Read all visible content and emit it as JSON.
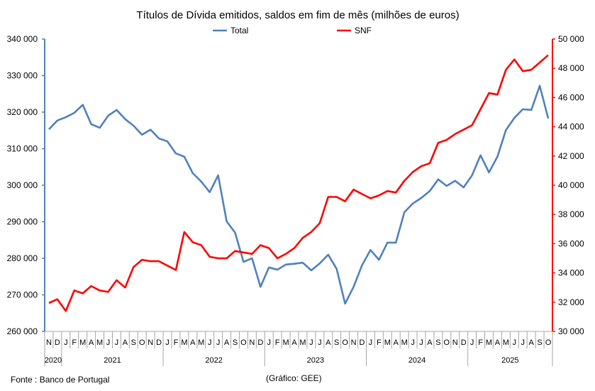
{
  "chart_data": {
    "type": "line",
    "title": "Títulos de Dívida emitidos, saldos em fim de mês  (milhões de euros)",
    "legend_position": "top-center",
    "source": "Fonte : Banco de Portugal",
    "credit": "(Gráfico: GEE)",
    "months": [
      "N",
      "D",
      "J",
      "F",
      "M",
      "A",
      "M",
      "J",
      "J",
      "A",
      "S",
      "O",
      "N",
      "D",
      "J",
      "F",
      "M",
      "A",
      "M",
      "J",
      "J",
      "A",
      "S",
      "O",
      "N",
      "D",
      "J",
      "F",
      "M",
      "A",
      "M",
      "J",
      "J",
      "A",
      "S",
      "O",
      "N",
      "D",
      "J",
      "F",
      "M",
      "A",
      "M",
      "J",
      "J",
      "A",
      "S",
      "O",
      "N",
      "D",
      "J",
      "F",
      "M",
      "A",
      "M",
      "J",
      "J",
      "A",
      "S",
      "O"
    ],
    "years": [
      {
        "label": "2020",
        "start": 0,
        "count": 2
      },
      {
        "label": "2021",
        "start": 2,
        "count": 12
      },
      {
        "label": "2022",
        "start": 14,
        "count": 12
      },
      {
        "label": "2023",
        "start": 26,
        "count": 12
      },
      {
        "label": "2024",
        "start": 38,
        "count": 12
      },
      {
        "label": "2025",
        "start": 50,
        "count": 10
      }
    ],
    "y_left": {
      "min": 260000,
      "max": 340000,
      "step": 10000,
      "ticks": [
        "260 000",
        "270 000",
        "280 000",
        "290 000",
        "300 000",
        "310 000",
        "320 000",
        "330 000",
        "340 000"
      ]
    },
    "y_right": {
      "min": 30000,
      "max": 50000,
      "step": 2000,
      "ticks": [
        "30 000",
        "32 000",
        "34 000",
        "36 000",
        "38 000",
        "40 000",
        "42 000",
        "44 000",
        "46 000",
        "48 000",
        "50 000"
      ]
    },
    "series": [
      {
        "name": "Total",
        "axis": "left",
        "color": "#4f81bd",
        "values": [
          315300,
          317700,
          318600,
          319800,
          322000,
          316700,
          315700,
          319000,
          320600,
          318100,
          316300,
          313800,
          315200,
          312800,
          312000,
          308700,
          307800,
          303300,
          301000,
          298100,
          302700,
          290100,
          287000,
          279000,
          280000,
          272200,
          277500,
          276900,
          278300,
          278500,
          278800,
          276700,
          278600,
          281000,
          277100,
          267600,
          272200,
          278100,
          282300,
          279600,
          284300,
          284300,
          292600,
          295000,
          296500,
          298400,
          301600,
          299800,
          301200,
          299400,
          302700,
          308200,
          303500,
          307800,
          315100,
          318400,
          320800,
          320600,
          327200,
          318300
        ]
      },
      {
        "name": "SNF",
        "axis": "right",
        "color": "#ff0000",
        "values": [
          31940,
          32200,
          31400,
          32800,
          32600,
          33100,
          32800,
          32700,
          33500,
          33000,
          34400,
          34900,
          34800,
          34800,
          34500,
          34200,
          36800,
          36100,
          35900,
          35100,
          35000,
          35000,
          35500,
          35400,
          35300,
          35900,
          35700,
          35000,
          35300,
          35700,
          36400,
          36800,
          37400,
          39200,
          39200,
          38900,
          39700,
          39400,
          39100,
          39300,
          39600,
          39500,
          40300,
          40900,
          41300,
          41500,
          42900,
          43100,
          43500,
          43800,
          44100,
          45200,
          46300,
          46200,
          47900,
          48600,
          47800,
          47900,
          48400,
          48900
        ]
      }
    ]
  }
}
